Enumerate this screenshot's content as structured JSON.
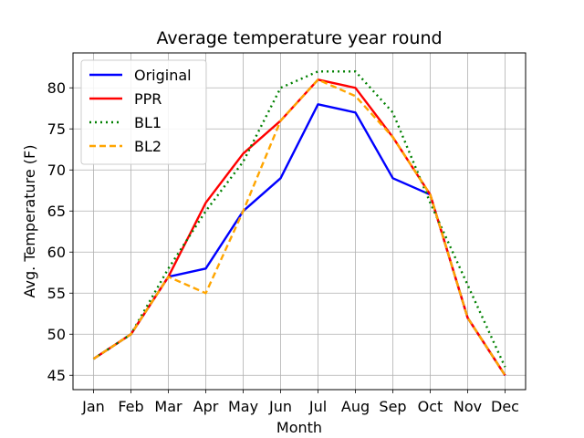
{
  "chart_data": {
    "type": "line",
    "title": "Average temperature year round",
    "xlabel": "Month",
    "ylabel": "Avg. Temperature (F)",
    "categories": [
      "Jan",
      "Feb",
      "Mar",
      "Apr",
      "May",
      "Jun",
      "Jul",
      "Aug",
      "Sep",
      "Oct",
      "Nov",
      "Dec"
    ],
    "ylim": [
      43.25,
      84.25
    ],
    "yticks": [
      45,
      50,
      55,
      60,
      65,
      70,
      75,
      80
    ],
    "grid": true,
    "legend_position": "top-left",
    "series": [
      {
        "name": "Original",
        "color": "#0000ff",
        "style": "solid",
        "values": [
          47,
          50,
          57,
          58,
          65,
          69,
          78,
          77,
          69,
          67,
          52,
          45
        ]
      },
      {
        "name": "PPR",
        "color": "#ff0000",
        "style": "solid",
        "values": [
          47,
          50,
          57,
          66,
          72,
          76,
          81,
          80,
          74,
          67,
          52,
          45
        ]
      },
      {
        "name": "BL1",
        "color": "#008000",
        "style": "dotted",
        "values": [
          47,
          50,
          58,
          65,
          71,
          80,
          82,
          82,
          77,
          66,
          56,
          46
        ]
      },
      {
        "name": "BL2",
        "color": "#ffa500",
        "style": "dashed",
        "values": [
          47,
          50,
          57,
          55,
          65,
          76,
          81,
          79,
          74,
          67,
          52,
          45
        ]
      }
    ]
  }
}
